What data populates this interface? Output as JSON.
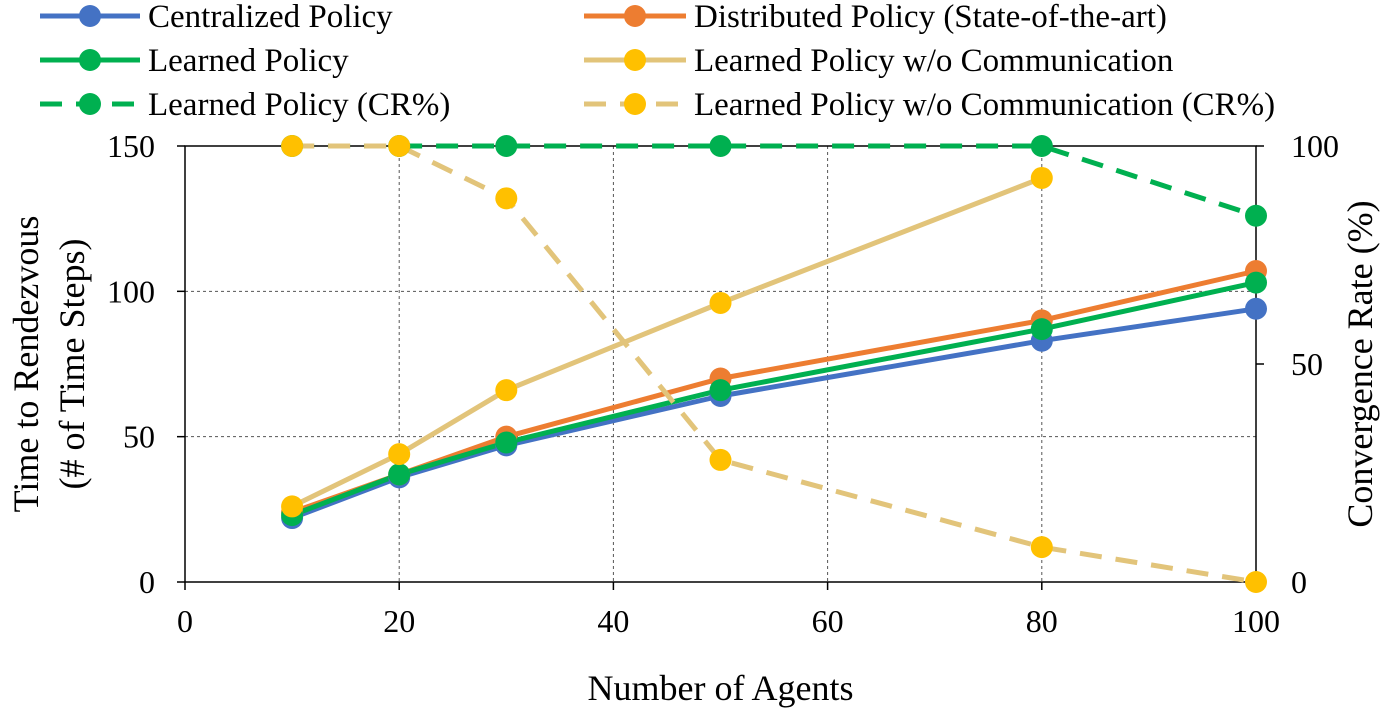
{
  "chart_data": {
    "type": "line",
    "xlabel": "Number of Agents",
    "ylabel_lines": [
      "Time to Rendezvous",
      "(# of Time Steps)"
    ],
    "y2label": "Convergence Rate (%)",
    "xlim": [
      0,
      100
    ],
    "ylim": [
      0,
      150
    ],
    "y2lim": [
      0,
      100
    ],
    "x_ticks": [
      "0",
      "20",
      "40",
      "60",
      "80",
      "100"
    ],
    "y_ticks": [
      "0",
      "50",
      "100",
      "150"
    ],
    "y2_ticks": [
      "0",
      "50",
      "100"
    ],
    "grid": true,
    "legend_position": "top",
    "series": [
      {
        "name": "Centralized Policy",
        "axis": "left",
        "style": "solid",
        "color": "#4472C4",
        "x": [
          10,
          20,
          30,
          50,
          80,
          100
        ],
        "values": [
          22,
          36,
          47,
          64,
          83,
          94
        ]
      },
      {
        "name": "Distributed Policy (State-of-the-art)",
        "axis": "left",
        "style": "solid",
        "color": "#ED7D31",
        "x": [
          10,
          20,
          30,
          50,
          80,
          100
        ],
        "values": [
          24,
          37,
          50,
          70,
          90,
          107
        ]
      },
      {
        "name": "Learned Policy",
        "axis": "left",
        "style": "solid",
        "color": "#00B050",
        "x": [
          10,
          20,
          30,
          50,
          80,
          100
        ],
        "values": [
          23,
          37,
          48,
          66,
          87,
          103
        ]
      },
      {
        "name": "Learned Policy w/o Communication",
        "axis": "left",
        "style": "solid",
        "color": "#E2C47A",
        "marker_color": "#FFC000",
        "x": [
          10,
          20,
          30,
          50,
          80
        ],
        "values": [
          26,
          44,
          66,
          96,
          139
        ]
      },
      {
        "name": "Learned Policy (CR%)",
        "axis": "right",
        "style": "dashed",
        "color": "#00B050",
        "x": [
          10,
          20,
          30,
          50,
          80,
          100
        ],
        "values": [
          100,
          100,
          100,
          100,
          100,
          84
        ]
      },
      {
        "name": "Learned Policy w/o Communication (CR%)",
        "axis": "right",
        "style": "dashed",
        "color": "#E2C47A",
        "marker_color": "#FFC000",
        "x": [
          10,
          20,
          30,
          50,
          80,
          100
        ],
        "values": [
          100,
          100,
          88,
          28,
          8,
          0
        ]
      }
    ]
  }
}
